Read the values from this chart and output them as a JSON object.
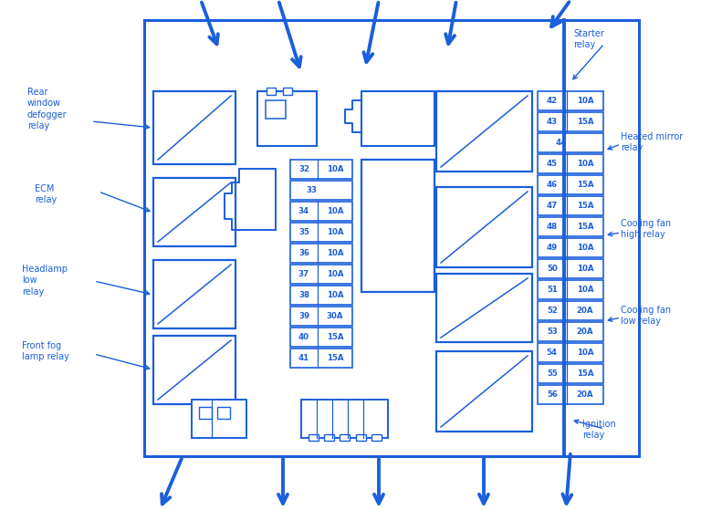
{
  "bg_color": "#ffffff",
  "lc": "#1a5fdb",
  "fuses_right": [
    {
      "num": "42",
      "amp": "10A",
      "row": 0
    },
    {
      "num": "43",
      "amp": "15A",
      "row": 1
    },
    {
      "num": "44",
      "amp": "",
      "row": 2
    },
    {
      "num": "45",
      "amp": "10A",
      "row": 3
    },
    {
      "num": "46",
      "amp": "15A",
      "row": 4
    },
    {
      "num": "47",
      "amp": "15A",
      "row": 5
    },
    {
      "num": "48",
      "amp": "15A",
      "row": 6
    },
    {
      "num": "49",
      "amp": "10A",
      "row": 7
    },
    {
      "num": "50",
      "amp": "10A",
      "row": 8
    },
    {
      "num": "51",
      "amp": "10A",
      "row": 9
    },
    {
      "num": "52",
      "amp": "20A",
      "row": 10
    },
    {
      "num": "53",
      "amp": "20A",
      "row": 11
    },
    {
      "num": "54",
      "amp": "10A",
      "row": 12
    },
    {
      "num": "55",
      "amp": "15A",
      "row": 13
    },
    {
      "num": "56",
      "amp": "20A",
      "row": 14
    }
  ],
  "fuses_center": [
    {
      "num": "32",
      "amp": "10A",
      "row": 0
    },
    {
      "num": "33",
      "amp": "",
      "row": 1
    },
    {
      "num": "34",
      "amp": "10A",
      "row": 2
    },
    {
      "num": "35",
      "amp": "10A",
      "row": 3
    },
    {
      "num": "36",
      "amp": "10A",
      "row": 4
    },
    {
      "num": "37",
      "amp": "10A",
      "row": 5
    },
    {
      "num": "38",
      "amp": "10A",
      "row": 6
    },
    {
      "num": "39",
      "amp": "30A",
      "row": 7
    },
    {
      "num": "40",
      "amp": "15A",
      "row": 8
    },
    {
      "num": "41",
      "amp": "15A",
      "row": 9
    }
  ]
}
